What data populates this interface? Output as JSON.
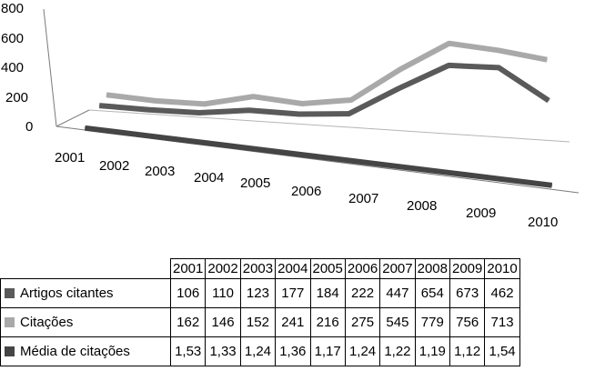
{
  "chart_data": {
    "type": "line",
    "title": "",
    "xlabel": "",
    "ylabel": "",
    "categories": [
      "2001",
      "2002",
      "2003",
      "2004",
      "2005",
      "2006",
      "2007",
      "2008",
      "2009",
      "2010"
    ],
    "y_ticks": [
      "800",
      "600",
      "400",
      "200",
      "0"
    ],
    "ylim": [
      0,
      800
    ],
    "three_d": true,
    "grid": false,
    "legend": "data-table-below",
    "series": [
      {
        "name": "Artigos citantes",
        "color": "#5a5a5a",
        "values": [
          106,
          110,
          123,
          177,
          184,
          222,
          447,
          654,
          673,
          462
        ],
        "labels": [
          "106",
          "110",
          "123",
          "177",
          "184",
          "222",
          "447",
          "654",
          "673",
          "462"
        ]
      },
      {
        "name": "Citações",
        "color": "#a9a9a9",
        "values": [
          162,
          146,
          152,
          241,
          216,
          275,
          545,
          779,
          756,
          713
        ],
        "labels": [
          "162",
          "146",
          "152",
          "241",
          "216",
          "275",
          "545",
          "779",
          "756",
          "713"
        ]
      },
      {
        "name": "Média de citações",
        "color": "#454545",
        "values": [
          1.53,
          1.33,
          1.24,
          1.36,
          1.17,
          1.24,
          1.22,
          1.19,
          1.12,
          1.54
        ],
        "labels": [
          "1,53",
          "1,33",
          "1,24",
          "1,36",
          "1,17",
          "1,24",
          "1,22",
          "1,19",
          "1,12",
          "1,54"
        ]
      }
    ]
  }
}
